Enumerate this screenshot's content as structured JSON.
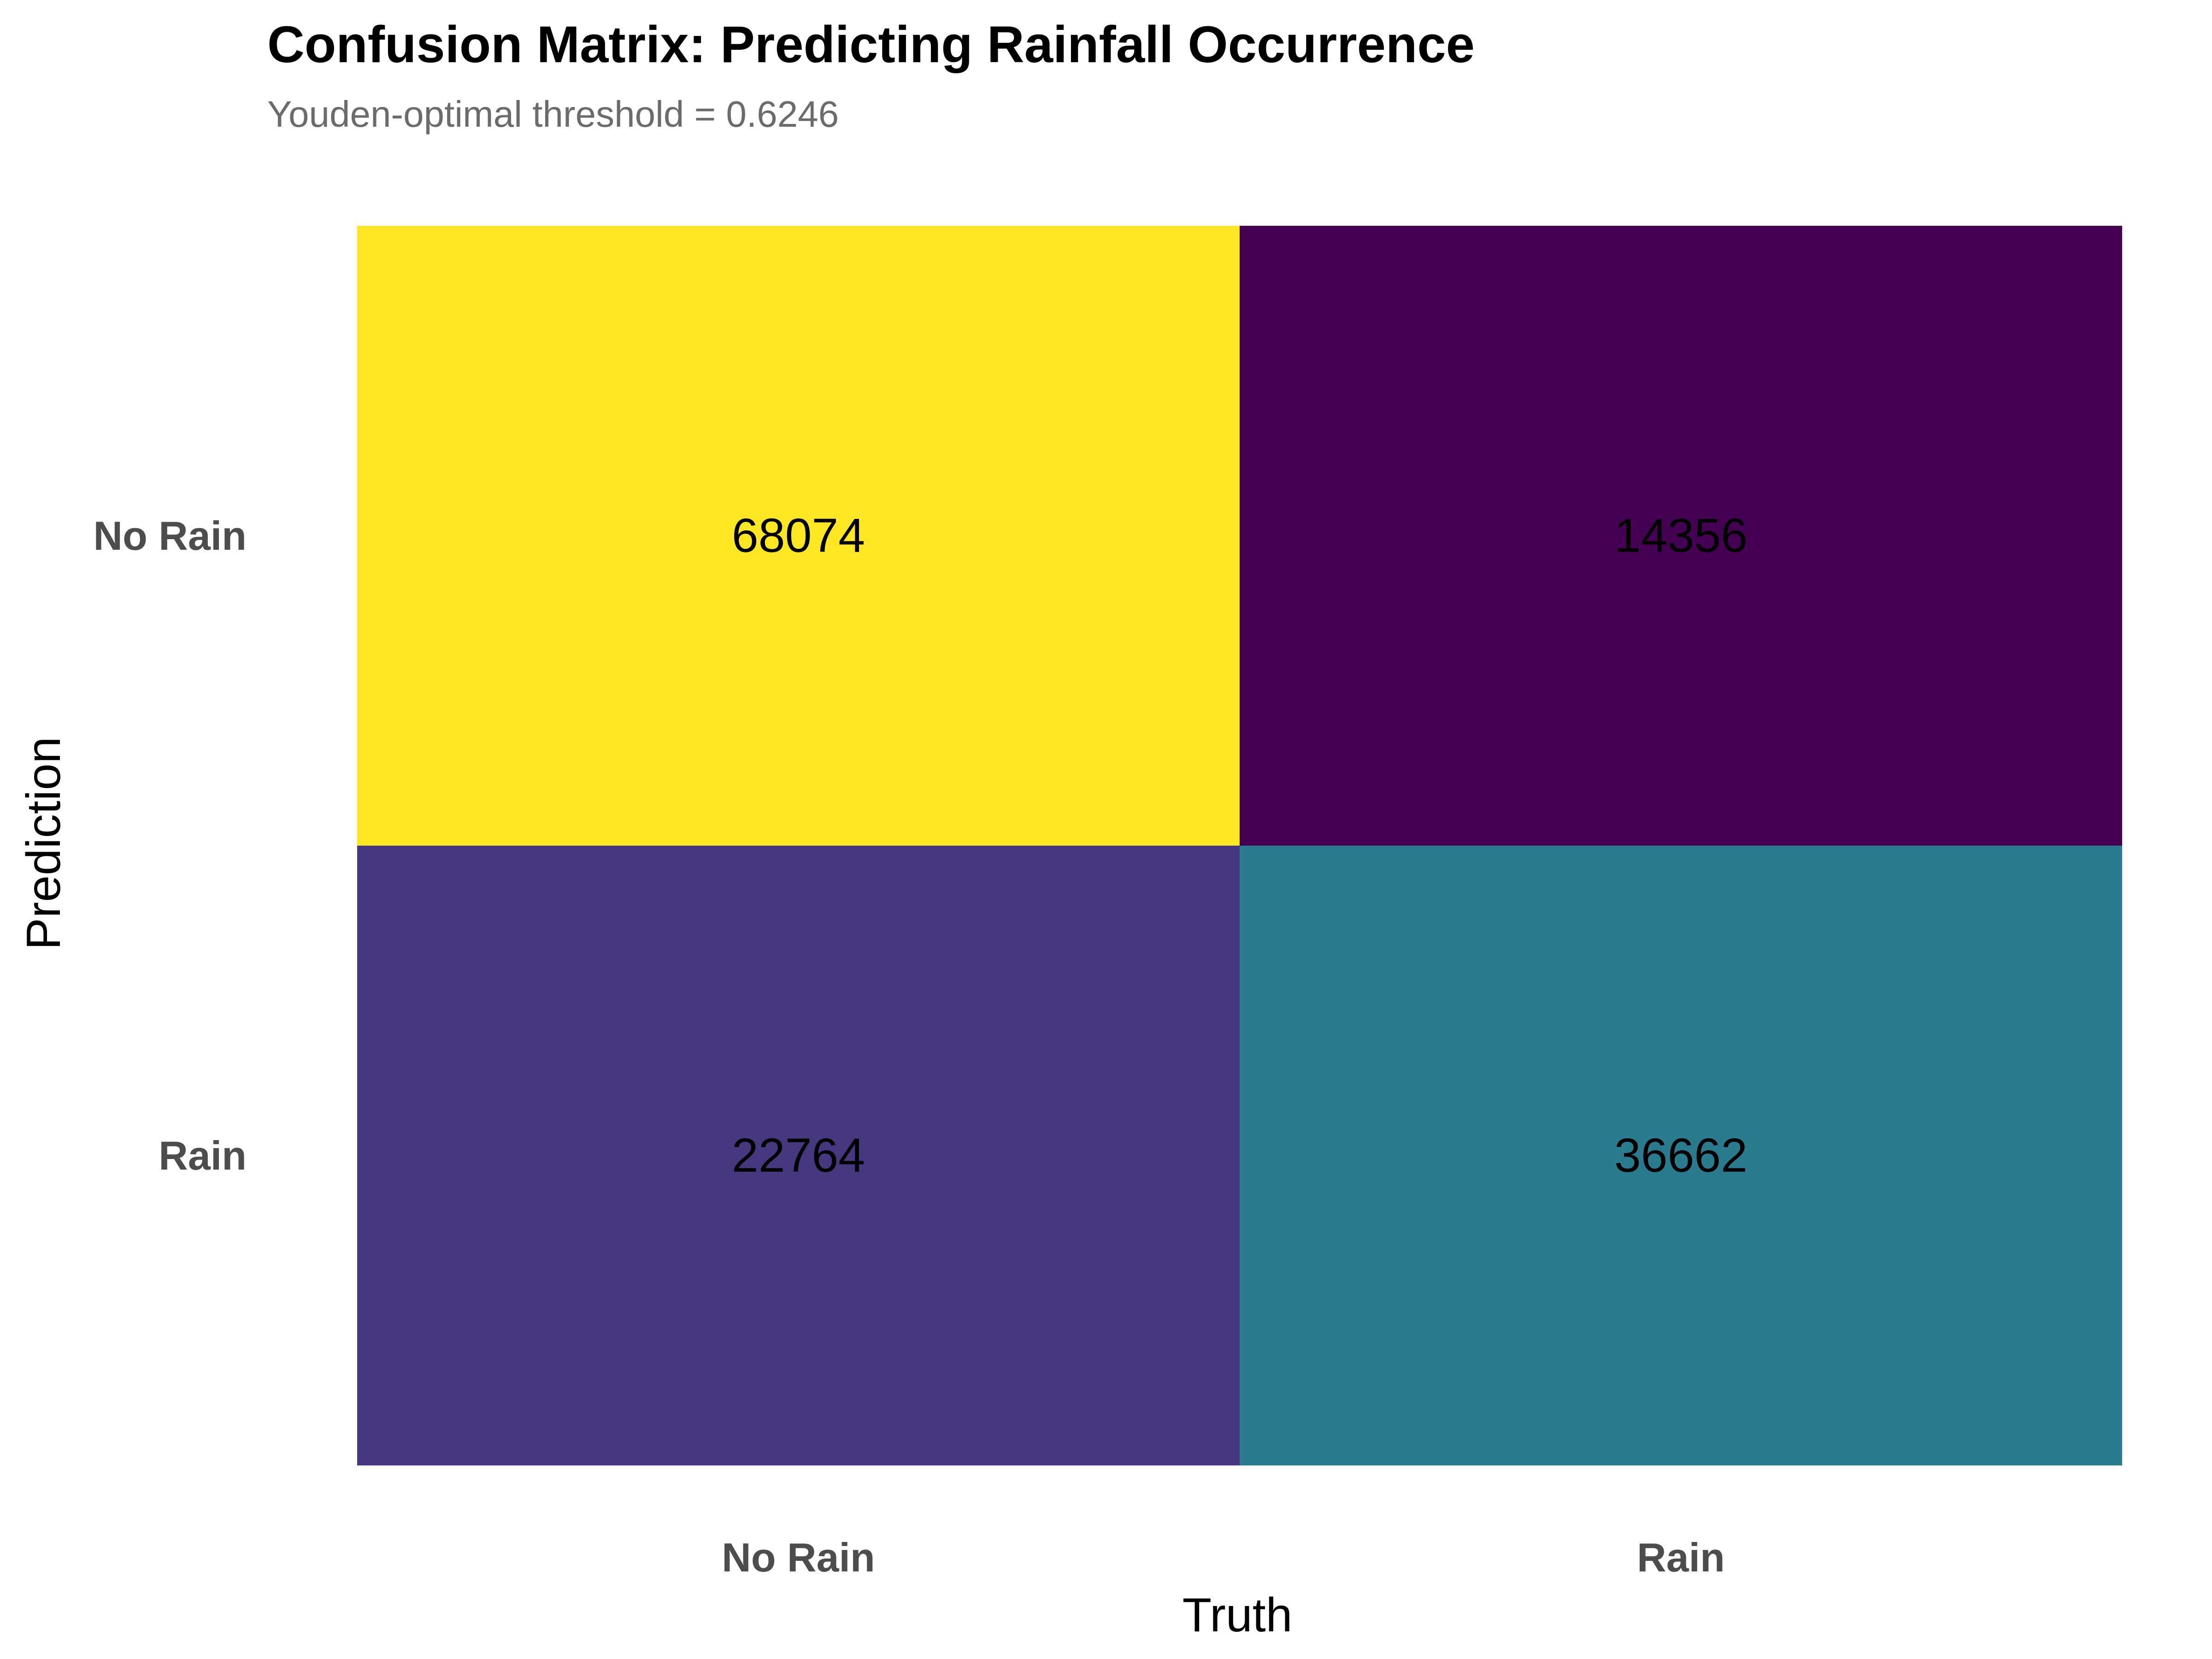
{
  "chart_data": {
    "type": "heatmap",
    "title": "Confusion Matrix: Predicting Rainfall Occurrence",
    "subtitle": "Youden-optimal threshold = 0.6246",
    "xlabel": "Truth",
    "ylabel": "Prediction",
    "x_categories": [
      "No Rain",
      "Rain"
    ],
    "y_categories": [
      "No Rain",
      "Rain"
    ],
    "cells": [
      {
        "prediction": "No Rain",
        "truth": "No Rain",
        "value": 68074,
        "color": "#FDE725"
      },
      {
        "prediction": "No Rain",
        "truth": "Rain",
        "value": 14356,
        "color": "#440154"
      },
      {
        "prediction": "Rain",
        "truth": "No Rain",
        "value": 22764,
        "color": "#46377F"
      },
      {
        "prediction": "Rain",
        "truth": "Rain",
        "value": 36662,
        "color": "#2A7B8D"
      }
    ],
    "colormap": "viridis",
    "grid": false,
    "legend": "none"
  }
}
